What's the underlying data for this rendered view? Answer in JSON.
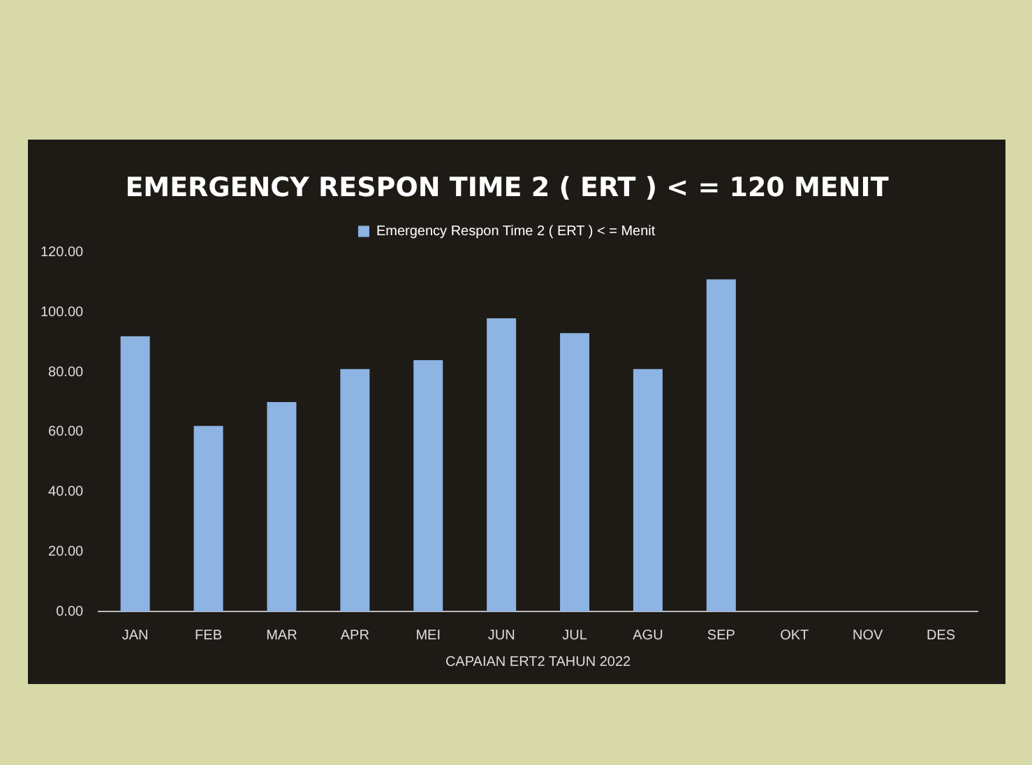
{
  "chart_data": {
    "type": "bar",
    "title": "EMERGENCY RESPON TIME 2 ( ERT ) < = 120 MENIT",
    "xlabel": "CAPAIAN ERT2 TAHUN 2022",
    "categories": [
      "JAN",
      "FEB",
      "MAR",
      "APR",
      "MEI",
      "JUN",
      "JUL",
      "AGU",
      "SEP",
      "OKT",
      "NOV",
      "DES"
    ],
    "series": [
      {
        "name": "Emergency Respon Time 2 ( ERT ) < = Menit",
        "color": "#8db4e2",
        "values": [
          92,
          62,
          70,
          81,
          84,
          98,
          93,
          81,
          111,
          null,
          null,
          null
        ]
      }
    ],
    "ylim": [
      0,
      120
    ],
    "yticks": [
      {
        "value": 0,
        "label": "0.00"
      },
      {
        "value": 20,
        "label": "20.00"
      },
      {
        "value": 40,
        "label": "40.00"
      },
      {
        "value": 60,
        "label": "60.00"
      },
      {
        "value": 80,
        "label": "80.00"
      },
      {
        "value": 100,
        "label": "100.00"
      },
      {
        "value": 120,
        "label": "120.00"
      }
    ],
    "grid": false,
    "legend": "top"
  }
}
